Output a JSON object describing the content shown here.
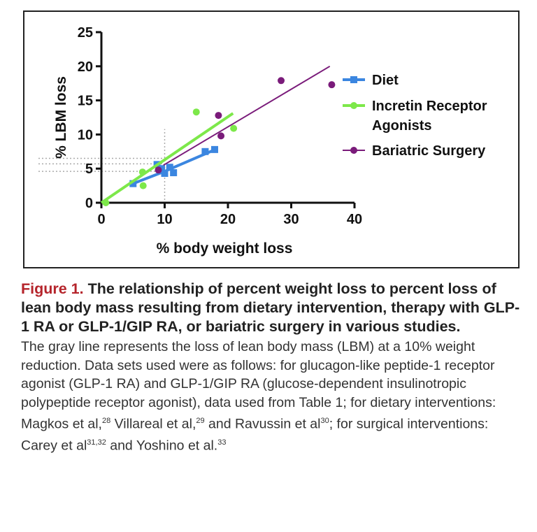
{
  "chart_data": {
    "type": "scatter",
    "xlabel": "% body weight loss",
    "ylabel": "% LBM loss",
    "xlim": [
      0,
      40
    ],
    "ylim": [
      0,
      25
    ],
    "xticks": [
      0,
      10,
      20,
      30,
      40
    ],
    "yticks": [
      0,
      5,
      10,
      15,
      20,
      25
    ],
    "grid": false,
    "legend_position": "right",
    "series": [
      {
        "name": "Diet",
        "color": "#3b86e0",
        "marker": "square",
        "x": [
          5.0,
          8.8,
          9.5,
          10.0,
          10.8,
          11.4,
          16.4,
          17.9
        ],
        "y": [
          2.8,
          5.6,
          5.0,
          4.3,
          5.2,
          4.4,
          7.5,
          7.8
        ],
        "fit": [
          [
            5.0,
            2.8
          ],
          [
            10.0,
            4.6
          ],
          [
            18.0,
            7.8
          ]
        ]
      },
      {
        "name": "Incretin Receptor Agonists",
        "color": "#7de84a",
        "marker": "circle",
        "x": [
          0.7,
          6.5,
          6.6,
          15.0,
          20.9
        ],
        "y": [
          0.0,
          4.5,
          2.5,
          13.3,
          10.9
        ],
        "fit": [
          [
            0,
            0
          ],
          [
            20.8,
            13.1
          ]
        ]
      },
      {
        "name": "Bariatric Surgery",
        "color": "#7a1b7a",
        "marker": "circle",
        "x": [
          9.0,
          18.5,
          18.9,
          28.4,
          36.4
        ],
        "y": [
          4.8,
          12.8,
          9.8,
          17.9,
          17.3
        ],
        "fit": [
          [
            9.8,
            5.5
          ],
          [
            36.1,
            20.0
          ]
        ]
      }
    ],
    "reference": {
      "color": "#aaaaaa",
      "x": 10,
      "y": [
        6.5,
        5.7,
        4.6
      ]
    }
  },
  "caption": {
    "figure_label": "Figure 1.",
    "title": " The relationship of percent weight loss to percent loss of lean body mass resulting from dietary intervention, therapy with GLP-1 RA or GLP-1/GIP RA, or bariatric surgery in various studies.",
    "body_1": "The gray line represents the loss of lean body mass (LBM) at a 10% weight reduction. Data sets used were as follows: for glucagon-like peptide-1 receptor agonist (GLP-1 RA) and GLP-1/GIP RA (glucose-dependent insulinotropic polypeptide receptor agonist), data used from Table 1; for dietary interventions: Magkos et al,",
    "ref_1": "28",
    "body_2": " Villareal et al,",
    "ref_2": "29",
    "body_3": " and Ravussin et al",
    "ref_3": "30",
    "body_4": "; for surgical interventions: Carey et al",
    "ref_4": "31,32",
    "body_5": " and Yoshino et al.",
    "ref_5": "33"
  }
}
